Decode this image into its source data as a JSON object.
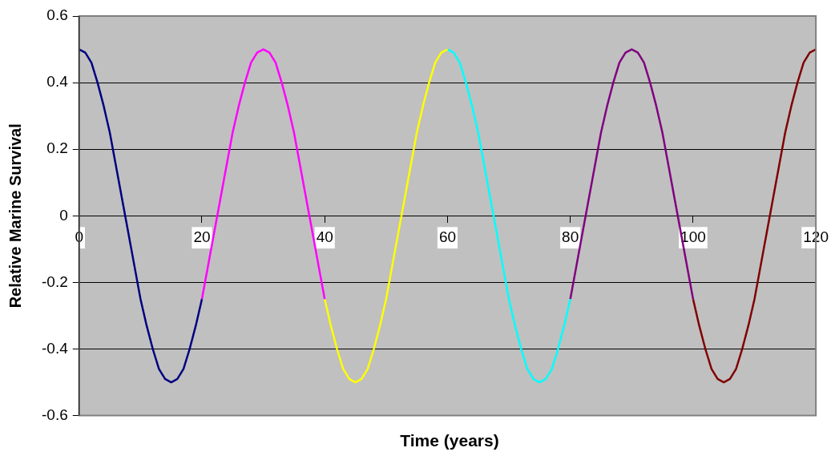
{
  "chart_data": {
    "type": "line",
    "xlabel": "Time (years)",
    "ylabel": "Relative Marine Survival",
    "xlim": [
      0,
      120
    ],
    "xticks": [
      0,
      20,
      40,
      60,
      80,
      100,
      120
    ],
    "ylim": [
      -0.6,
      0.6
    ],
    "yticks": [
      -0.6,
      -0.4,
      -0.2,
      0,
      0.2,
      0.4,
      0.6
    ],
    "grid": "y",
    "legend": false,
    "marker": "none",
    "line_style": "solid",
    "series": [
      {
        "color": "#000080",
        "x": [
          0,
          1,
          2,
          3,
          4,
          5,
          6,
          7,
          8,
          9,
          10,
          11,
          12,
          13,
          14,
          15,
          16,
          17,
          18,
          19,
          20
        ],
        "values": [
          0.5,
          0.49,
          0.46,
          0.4,
          0.33,
          0.25,
          0.15,
          0.05,
          -0.05,
          -0.15,
          -0.25,
          -0.33,
          -0.4,
          -0.46,
          -0.49,
          -0.5,
          -0.49,
          -0.46,
          -0.4,
          -0.33,
          -0.25
        ]
      },
      {
        "color": "#ff00ff",
        "x": [
          20,
          21,
          22,
          23,
          24,
          25,
          26,
          27,
          28,
          29,
          30,
          31,
          32,
          33,
          34,
          35,
          36,
          37,
          38,
          39,
          40
        ],
        "values": [
          -0.25,
          -0.15,
          -0.05,
          0.05,
          0.15,
          0.25,
          0.33,
          0.4,
          0.46,
          0.49,
          0.5,
          0.49,
          0.46,
          0.4,
          0.33,
          0.25,
          0.15,
          0.05,
          -0.05,
          -0.15,
          -0.25
        ]
      },
      {
        "color": "#ffff00",
        "x": [
          40,
          41,
          42,
          43,
          44,
          45,
          46,
          47,
          48,
          49,
          50,
          51,
          52,
          53,
          54,
          55,
          56,
          57,
          58,
          59,
          60
        ],
        "values": [
          -0.25,
          -0.33,
          -0.4,
          -0.46,
          -0.49,
          -0.5,
          -0.49,
          -0.46,
          -0.4,
          -0.33,
          -0.25,
          -0.15,
          -0.05,
          0.05,
          0.15,
          0.25,
          0.33,
          0.4,
          0.46,
          0.49,
          0.5
        ]
      },
      {
        "color": "#00ffff",
        "x": [
          60,
          61,
          62,
          63,
          64,
          65,
          66,
          67,
          68,
          69,
          70,
          71,
          72,
          73,
          74,
          75,
          76,
          77,
          78,
          79,
          80
        ],
        "values": [
          0.5,
          0.49,
          0.46,
          0.4,
          0.33,
          0.25,
          0.15,
          0.05,
          -0.05,
          -0.15,
          -0.25,
          -0.33,
          -0.4,
          -0.46,
          -0.49,
          -0.5,
          -0.49,
          -0.46,
          -0.4,
          -0.33,
          -0.25
        ]
      },
      {
        "color": "#800080",
        "x": [
          80,
          81,
          82,
          83,
          84,
          85,
          86,
          87,
          88,
          89,
          90,
          91,
          92,
          93,
          94,
          95,
          96,
          97,
          98,
          99,
          100
        ],
        "values": [
          -0.25,
          -0.15,
          -0.05,
          0.05,
          0.15,
          0.25,
          0.33,
          0.4,
          0.46,
          0.49,
          0.5,
          0.49,
          0.46,
          0.4,
          0.33,
          0.25,
          0.15,
          0.05,
          -0.05,
          -0.15,
          -0.25
        ]
      },
      {
        "color": "#800000",
        "x": [
          100,
          101,
          102,
          103,
          104,
          105,
          106,
          107,
          108,
          109,
          110,
          111,
          112,
          113,
          114,
          115,
          116,
          117,
          118,
          119,
          120
        ],
        "values": [
          -0.25,
          -0.33,
          -0.4,
          -0.46,
          -0.49,
          -0.5,
          -0.49,
          -0.46,
          -0.4,
          -0.33,
          -0.25,
          -0.15,
          -0.05,
          0.05,
          0.15,
          0.25,
          0.33,
          0.4,
          0.46,
          0.49,
          0.5
        ]
      }
    ]
  }
}
